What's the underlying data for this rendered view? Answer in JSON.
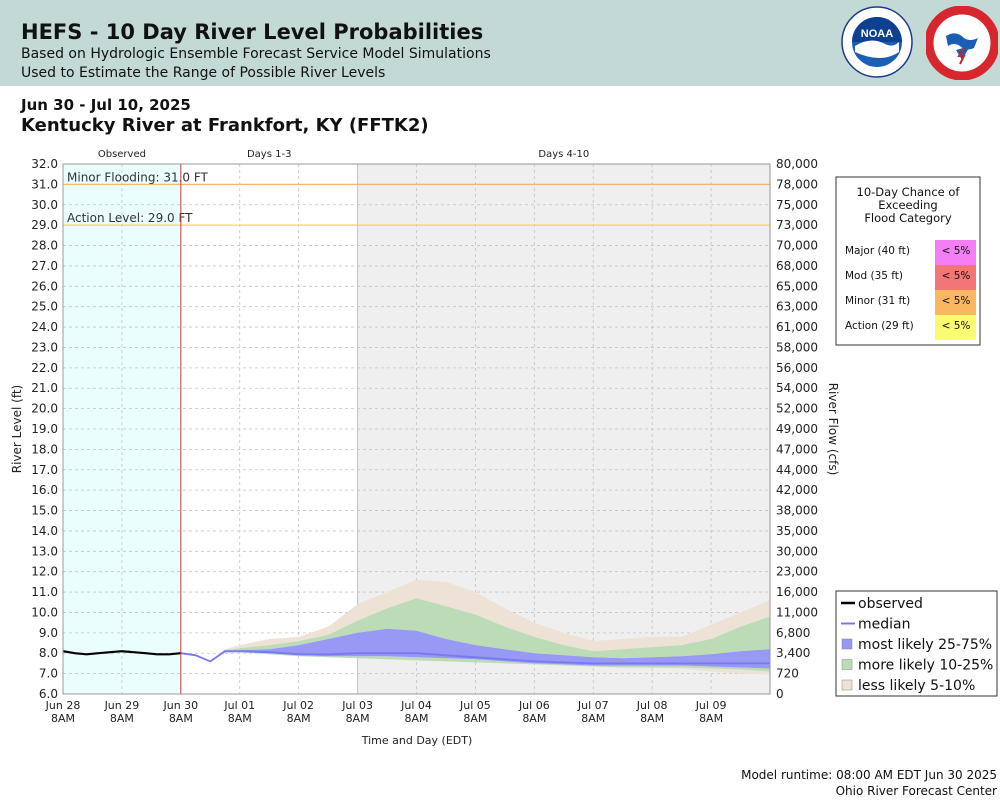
{
  "header": {
    "title": "HEFS - 10 Day River Level Probabilities",
    "subtitle1": "Based on Hydrologic Ensemble Forecast Service Model Simulations",
    "subtitle2": "Used to Estimate the Range of Possible River Levels",
    "logos": {
      "noaa": "NOAA",
      "nws": "NATIONAL WEATHER SERVICE"
    }
  },
  "date_range": "Jun 30 - Jul 10, 2025",
  "station": "Kentucky River at Frankfort, KY (FFTK2)",
  "footer": {
    "runtime": "Model runtime: 08:00 AM EDT Jun 30 2025",
    "center": "Ohio River Forecast Center"
  },
  "colors": {
    "observed_bg": "#eafefe",
    "days4_bg": "#efefef",
    "observed_line": "#000000",
    "median": "#7878f0",
    "band_25_75": "#9898f5",
    "band_10_25": "#bcdcb8",
    "band_5_10": "#ede2d5",
    "minor_line": "#f0b86e",
    "action_line": "#f5d84e",
    "forecast_start": "#c83c3c",
    "major": "#f47ff4",
    "moderate": "#f47575",
    "minor": "#fbb75f",
    "action": "#fbfb71"
  },
  "chart_data": {
    "type": "area",
    "section_labels": [
      "Observed",
      "Days 1-3",
      "Days 4-10"
    ],
    "y_left": {
      "label": "River Level (ft)",
      "min": 6.0,
      "max": 32.0,
      "ticks": [
        "6.0",
        "7.0",
        "8.0",
        "9.0",
        "10.0",
        "11.0",
        "12.0",
        "13.0",
        "14.0",
        "15.0",
        "16.0",
        "17.0",
        "18.0",
        "19.0",
        "20.0",
        "21.0",
        "22.0",
        "23.0",
        "24.0",
        "25.0",
        "26.0",
        "27.0",
        "28.0",
        "29.0",
        "30.0",
        "31.0",
        "32.0"
      ]
    },
    "y_right": {
      "label": "River Flow (cfs)",
      "ticks": [
        "0",
        "720",
        "3,400",
        "6,800",
        "11,000",
        "16,000",
        "23,000",
        "30,000",
        "35,000",
        "38,000",
        "42,000",
        "44,000",
        "47,000",
        "49,000",
        "52,000",
        "54,000",
        "56,000",
        "58,000",
        "61,000",
        "63,000",
        "65,000",
        "68,000",
        "70,000",
        "73,000",
        "75,000",
        "78,000",
        "80,000"
      ]
    },
    "x_axis": {
      "label": "Time and Day (EDT)",
      "min_day": -2,
      "max_day": 10,
      "ticks": [
        {
          "day": -2,
          "line1": "Jun 28",
          "line2": "8AM"
        },
        {
          "day": -1,
          "line1": "Jun 29",
          "line2": "8AM"
        },
        {
          "day": 0,
          "line1": "Jun 30",
          "line2": "8AM"
        },
        {
          "day": 1,
          "line1": "Jul 01",
          "line2": "8AM"
        },
        {
          "day": 2,
          "line1": "Jul 02",
          "line2": "8AM"
        },
        {
          "day": 3,
          "line1": "Jul 03",
          "line2": "8AM"
        },
        {
          "day": 4,
          "line1": "Jul 04",
          "line2": "8AM"
        },
        {
          "day": 5,
          "line1": "Jul 05",
          "line2": "8AM"
        },
        {
          "day": 6,
          "line1": "Jul 06",
          "line2": "8AM"
        },
        {
          "day": 7,
          "line1": "Jul 07",
          "line2": "8AM"
        },
        {
          "day": 8,
          "line1": "Jul 08",
          "line2": "8AM"
        },
        {
          "day": 9,
          "line1": "Jul 09",
          "line2": "8AM"
        }
      ]
    },
    "thresholds": [
      {
        "label": "Minor Flooding: 31.0 FT",
        "value": 31.0
      },
      {
        "label": "Action Level: 29.0 FT",
        "value": 29.0
      }
    ],
    "observed": {
      "name": "observed",
      "points": [
        [
          -2.0,
          8.1
        ],
        [
          -1.8,
          8.0
        ],
        [
          -1.6,
          7.95
        ],
        [
          -1.4,
          8.0
        ],
        [
          -1.2,
          8.05
        ],
        [
          -1.0,
          8.1
        ],
        [
          -0.8,
          8.05
        ],
        [
          -0.6,
          8.0
        ],
        [
          -0.4,
          7.95
        ],
        [
          -0.2,
          7.95
        ],
        [
          0.0,
          8.0
        ]
      ]
    },
    "forecast": {
      "x": [
        0,
        0.25,
        0.5,
        0.75,
        1,
        1.5,
        2,
        2.5,
        3,
        3.5,
        4,
        4.5,
        5,
        5.5,
        6,
        6.5,
        7,
        7.5,
        8,
        8.5,
        9,
        9.5,
        10
      ],
      "median": [
        8.0,
        7.9,
        7.6,
        8.1,
        8.1,
        8.05,
        7.95,
        7.95,
        8.0,
        8.0,
        8.0,
        7.9,
        7.8,
        7.7,
        7.6,
        7.55,
        7.5,
        7.5,
        7.5,
        7.5,
        7.5,
        7.5,
        7.5
      ],
      "p25": [
        8.0,
        7.9,
        7.6,
        8.05,
        8.05,
        8.0,
        7.9,
        7.85,
        7.85,
        7.85,
        7.8,
        7.75,
        7.7,
        7.6,
        7.5,
        7.45,
        7.4,
        7.4,
        7.4,
        7.4,
        7.35,
        7.3,
        7.25
      ],
      "p75": [
        8.0,
        7.9,
        7.6,
        8.1,
        8.15,
        8.2,
        8.4,
        8.7,
        9.0,
        9.2,
        9.1,
        8.7,
        8.4,
        8.2,
        8.0,
        7.9,
        7.8,
        7.75,
        7.8,
        7.85,
        7.95,
        8.1,
        8.2
      ],
      "p10": [
        8.0,
        7.9,
        7.6,
        8.05,
        8.05,
        7.95,
        7.85,
        7.8,
        7.75,
        7.7,
        7.65,
        7.6,
        7.55,
        7.5,
        7.45,
        7.4,
        7.35,
        7.3,
        7.3,
        7.3,
        7.25,
        7.2,
        7.1
      ],
      "p90": [
        8.0,
        7.9,
        7.6,
        8.15,
        8.25,
        8.4,
        8.6,
        8.9,
        9.6,
        10.2,
        10.7,
        10.3,
        9.9,
        9.3,
        8.8,
        8.4,
        8.1,
        8.2,
        8.3,
        8.4,
        8.7,
        9.3,
        9.8
      ],
      "p05": [
        8.0,
        7.9,
        7.6,
        8.05,
        8.05,
        7.95,
        7.85,
        7.8,
        7.75,
        7.7,
        7.65,
        7.6,
        7.55,
        7.5,
        7.45,
        7.4,
        7.35,
        7.3,
        7.3,
        7.25,
        7.1,
        7.0,
        6.95
      ],
      "p95": [
        8.0,
        7.9,
        7.6,
        8.2,
        8.4,
        8.7,
        8.8,
        9.3,
        10.4,
        11.0,
        11.6,
        11.5,
        11.0,
        10.2,
        9.5,
        9.0,
        8.6,
        8.7,
        8.8,
        8.8,
        9.4,
        10.0,
        10.6
      ]
    },
    "legend": {
      "placement": "bottom-right",
      "entries": [
        "observed",
        "median",
        "most likely 25-75%",
        "more likely 10-25%",
        "less likely 5-10%"
      ]
    },
    "flood_chance": {
      "title_lines": [
        "10-Day Chance of",
        "Exceeding",
        "Flood Category"
      ],
      "rows": [
        {
          "category": "Major (40 ft)",
          "chance": "< 5%"
        },
        {
          "category": "Mod (35 ft)",
          "chance": "< 5%"
        },
        {
          "category": "Minor (31 ft)",
          "chance": "< 5%"
        },
        {
          "category": "Action (29 ft)",
          "chance": "< 5%"
        }
      ]
    }
  }
}
